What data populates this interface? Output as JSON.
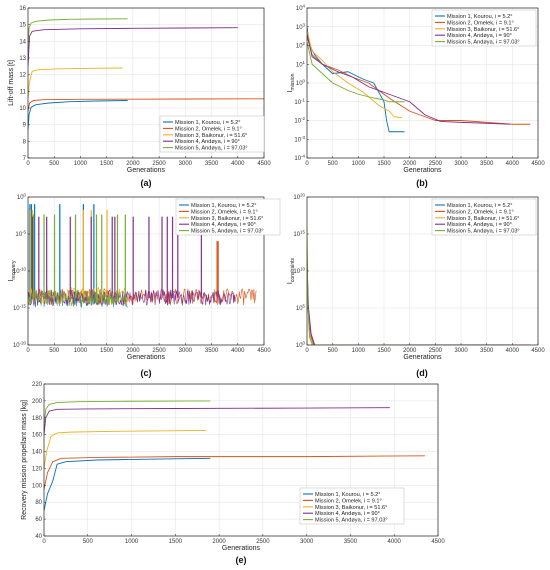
{
  "colors": [
    "#0072BD",
    "#D95319",
    "#EDB120",
    "#7E2F8E",
    "#77AC30"
  ],
  "chart_data": [
    {
      "id": "a",
      "type": "line",
      "panel_label": "(a)",
      "title": "",
      "xlabel": "Generations",
      "ylabel": "Lift-off mass [t]",
      "xlim": [
        0,
        4500
      ],
      "ylim": [
        7,
        16
      ],
      "xticks": [
        0,
        500,
        1000,
        1500,
        2000,
        2500,
        3000,
        3500,
        4000,
        4500
      ],
      "yticks": [
        7,
        8,
        9,
        10,
        11,
        12,
        13,
        14,
        15,
        16
      ],
      "yscale": "linear",
      "legend": "bottom-right",
      "grid": true,
      "series": [
        {
          "name": "Mission 1, Kourou, i = 5.2°",
          "x": [
            0,
            20,
            60,
            150,
            400,
            800,
            1300,
            1900
          ],
          "y": [
            8.7,
            9.6,
            10.05,
            10.2,
            10.3,
            10.38,
            10.42,
            10.45
          ]
        },
        {
          "name": "Mission 2, Omelek, i = 9.1°",
          "x": [
            0,
            30,
            100,
            300,
            1000,
            2000,
            3000,
            4500
          ],
          "y": [
            9.8,
            10.3,
            10.45,
            10.5,
            10.52,
            10.53,
            10.54,
            10.55
          ]
        },
        {
          "name": "Mission 3, Baikonur, i = 51.6°",
          "x": [
            0,
            30,
            80,
            200,
            600,
            1200,
            1800
          ],
          "y": [
            10.6,
            11.6,
            12.2,
            12.3,
            12.35,
            12.38,
            12.4
          ]
        },
        {
          "name": "Mission 4, Andøya, i = 90°",
          "x": [
            0,
            30,
            80,
            300,
            1000,
            2000,
            3000,
            4000
          ],
          "y": [
            12.5,
            14.3,
            14.6,
            14.7,
            14.75,
            14.78,
            14.8,
            14.82
          ]
        },
        {
          "name": "Mission 5, Andøya, i = 97.03°",
          "x": [
            0,
            20,
            60,
            150,
            400,
            800,
            1300,
            1900
          ],
          "y": [
            13.6,
            14.8,
            15.1,
            15.2,
            15.28,
            15.32,
            15.34,
            15.35
          ]
        }
      ]
    },
    {
      "id": "b",
      "type": "line",
      "panel_label": "(b)",
      "title": "",
      "xlabel": "Generations",
      "ylabel": "I_mission",
      "xlim": [
        0,
        4500
      ],
      "ylim": [
        -4,
        4
      ],
      "xticks": [
        0,
        500,
        1000,
        1500,
        2000,
        2500,
        3000,
        3500,
        4000,
        4500
      ],
      "yticks": [
        -4,
        -3,
        -2,
        -1,
        0,
        1,
        2,
        3,
        4
      ],
      "ytick_labels": [
        "10^-4",
        "10^-3",
        "10^-2",
        "10^-1",
        "10^0",
        "10^1",
        "10^2",
        "10^3",
        "10^4"
      ],
      "yscale": "log",
      "legend": "top-right",
      "grid": true,
      "series": [
        {
          "name": "Mission 1, Kourou, i = 5.2°",
          "x": [
            0,
            50,
            150,
            300,
            500,
            800,
            1100,
            1300,
            1500,
            1550,
            1600,
            1900
          ],
          "y": [
            3,
            2,
            1.5,
            1,
            0.5,
            0.6,
            0.2,
            0,
            -1,
            -2,
            -2.6,
            -2.6
          ]
        },
        {
          "name": "Mission 2, Omelek, i = 9.1°",
          "x": [
            0,
            100,
            300,
            600,
            900,
            1200,
            1600,
            2000,
            2500,
            3000,
            3500,
            4000,
            4350
          ],
          "y": [
            2.5,
            1.5,
            1,
            0.7,
            0.3,
            0,
            -0.8,
            -1.5,
            -2,
            -2,
            -2.1,
            -2.2,
            -2.2
          ]
        },
        {
          "name": "Mission 3, Baikonur, i = 51.6°",
          "x": [
            0,
            100,
            300,
            500,
            800,
            1100,
            1400,
            1600,
            1700,
            1850
          ],
          "y": [
            2.8,
            1.7,
            1.2,
            0.6,
            0,
            -0.5,
            -1.2,
            -1.5,
            -1.8,
            -1.85
          ]
        },
        {
          "name": "Mission 4, Andøya, i = 90°",
          "x": [
            0,
            100,
            300,
            600,
            900,
            1200,
            1500,
            1800,
            2000,
            2300,
            2600,
            3000,
            3500,
            3950
          ],
          "y": [
            2.6,
            1.4,
            1,
            0.6,
            0.3,
            -0.2,
            -0.5,
            -0.8,
            -1,
            -1.7,
            -2.05,
            -2.1,
            -2.15,
            -2.2
          ]
        },
        {
          "name": "Mission 5, Andøya, i = 97.03°",
          "x": [
            0,
            100,
            300,
            500,
            800,
            1000,
            1300,
            1500,
            1600,
            1900
          ],
          "y": [
            2.2,
            1,
            0.5,
            0,
            -0.4,
            -0.6,
            -0.8,
            -0.9,
            -1,
            -1
          ]
        }
      ]
    },
    {
      "id": "c",
      "type": "line",
      "panel_label": "(c)",
      "title": "",
      "xlabel": "Generations",
      "ylabel": "I_recovery",
      "xlim": [
        0,
        4500
      ],
      "ylim": [
        -20,
        0
      ],
      "xticks": [
        0,
        500,
        1000,
        1500,
        2000,
        2500,
        3000,
        3500,
        4000,
        4500
      ],
      "yticks": [
        -20,
        -15,
        -10,
        -5,
        0
      ],
      "ytick_labels": [
        "10^-20",
        "10^-15",
        "10^-10",
        "10^-5",
        "10^0"
      ],
      "yscale": "log",
      "legend": "top-right",
      "grid": true,
      "series": [
        {
          "name": "Mission 1, Kourou, i = 5.2°",
          "xmax": 1900,
          "baseline": -13.8,
          "spike_top": -1,
          "spikes": [
            30,
            60,
            120,
            600,
            1050,
            1250
          ]
        },
        {
          "name": "Mission 2, Omelek, i = 9.1°",
          "xmax": 4350,
          "baseline": -13.5,
          "spike_top": -6,
          "spikes": [
            3600,
            3620
          ]
        },
        {
          "name": "Mission 3, Baikonur, i = 51.6°",
          "xmax": 1850,
          "baseline": -13.3,
          "spike_top": -1.8,
          "spikes": [
            40,
            80,
            1050,
            1200,
            1500
          ]
        },
        {
          "name": "Mission 4, Andøya, i = 90°",
          "xmax": 3950,
          "baseline": -13.6,
          "spike_top": -2.7,
          "spikes": [
            80,
            200,
            350,
            800,
            1200,
            1600,
            1650,
            2000,
            2300,
            2550,
            2650,
            2750,
            2850,
            3300
          ]
        },
        {
          "name": "Mission 5, Andøya, i = 97.03°",
          "xmax": 1900,
          "baseline": -13.7,
          "spike_top": -2.4,
          "spikes": [
            100,
            300,
            500,
            900,
            1300,
            1400,
            1700,
            1850
          ]
        }
      ]
    },
    {
      "id": "d",
      "type": "line",
      "panel_label": "(d)",
      "title": "",
      "xlabel": "Generations",
      "ylabel": "I_constraints",
      "xlim": [
        0,
        4500
      ],
      "ylim": [
        0,
        20
      ],
      "xticks": [
        0,
        500,
        1000,
        1500,
        2000,
        2500,
        3000,
        3500,
        4000,
        4500
      ],
      "yticks": [
        0,
        5,
        10,
        15,
        20
      ],
      "ytick_labels": [
        "10^0",
        "10^5",
        "10^10",
        "10^15",
        "10^20"
      ],
      "yscale": "log",
      "legend": "top-right",
      "grid": true,
      "series": [
        {
          "name": "Mission 1, Kourou, i = 5.2°",
          "x": [
            0,
            20,
            60,
            100,
            150,
            1900
          ],
          "y": [
            12,
            5,
            2,
            1,
            0,
            0
          ]
        },
        {
          "name": "Mission 2, Omelek, i = 9.1°",
          "x": [
            0,
            30,
            80,
            140,
            4350
          ],
          "y": [
            10,
            4,
            1,
            0,
            0
          ]
        },
        {
          "name": "Mission 3, Baikonur, i = 51.6°",
          "x": [
            0,
            15,
            40,
            90,
            1850
          ],
          "y": [
            16,
            6,
            2,
            0,
            0
          ]
        },
        {
          "name": "Mission 4, Andøya, i = 90°",
          "x": [
            0,
            30,
            80,
            150,
            3950
          ],
          "y": [
            11,
            5,
            1.5,
            0,
            0
          ]
        },
        {
          "name": "Mission 5, Andøya, i = 97.03°",
          "x": [
            0,
            20,
            50,
            120,
            1900
          ],
          "y": [
            14,
            5,
            1,
            0,
            0
          ]
        }
      ]
    },
    {
      "id": "e",
      "type": "line",
      "panel_label": "(e)",
      "title": "",
      "xlabel": "Generations",
      "ylabel": "Recovery mission propellant mass [kg]",
      "xlim": [
        0,
        4500
      ],
      "ylim": [
        40,
        220
      ],
      "xticks": [
        0,
        500,
        1000,
        1500,
        2000,
        2500,
        3000,
        3500,
        4000,
        4500
      ],
      "yticks": [
        40,
        60,
        80,
        100,
        120,
        140,
        160,
        180,
        200,
        220
      ],
      "yscale": "linear",
      "legend": "bottom-right",
      "grid": true,
      "series": [
        {
          "name": "Mission 1, Kourou, i = 5.2°",
          "x": [
            0,
            40,
            100,
            150,
            250,
            600,
            1200,
            1900
          ],
          "y": [
            70,
            90,
            105,
            125,
            128,
            130,
            131,
            132
          ]
        },
        {
          "name": "Mission 2, Omelek, i = 9.1°",
          "x": [
            0,
            40,
            100,
            200,
            600,
            1500,
            3000,
            4350
          ],
          "y": [
            95,
            115,
            128,
            132,
            133,
            134,
            134,
            135
          ]
        },
        {
          "name": "Mission 3, Baikonur, i = 51.6°",
          "x": [
            0,
            30,
            80,
            150,
            300,
            800,
            1850
          ],
          "y": [
            120,
            140,
            158,
            162,
            163,
            164,
            165
          ]
        },
        {
          "name": "Mission 4, Andøya, i = 90°",
          "x": [
            0,
            20,
            60,
            150,
            500,
            1500,
            3000,
            3950
          ],
          "y": [
            160,
            180,
            188,
            190,
            190.5,
            191,
            191.5,
            192
          ]
        },
        {
          "name": "Mission 5, Andøya, i = 97.03°",
          "x": [
            0,
            20,
            60,
            150,
            400,
            800,
            1900
          ],
          "y": [
            170,
            190,
            196,
            198,
            199,
            199.5,
            200
          ]
        }
      ]
    }
  ]
}
